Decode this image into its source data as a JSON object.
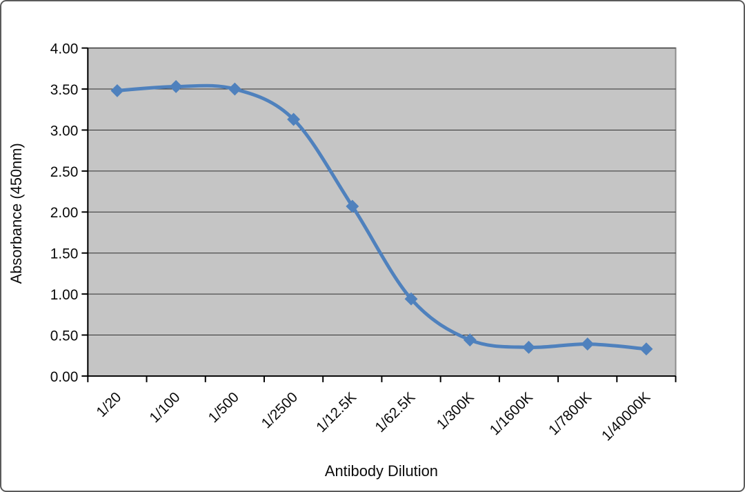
{
  "frame": {
    "background": "#ffffff",
    "border_color": "#5a5a5a"
  },
  "chart_data": {
    "type": "line",
    "title": "",
    "categories": [
      "1/20",
      "1/100",
      "1/500",
      "1/2500",
      "1/12.5K",
      "1/62.5K",
      "1/300K",
      "1/1600K",
      "1/7800K",
      "1/40000K"
    ],
    "series": [
      {
        "values": [
          3.48,
          3.53,
          3.5,
          3.13,
          2.07,
          0.94,
          0.44,
          0.35,
          0.39,
          0.33
        ],
        "marker": "diamond",
        "smoothed": true
      }
    ],
    "xlabel": "Antibody Dilution",
    "ylabel": "Absorbance (450nm)",
    "ylim": [
      0,
      4
    ],
    "ytick_step": 0.5,
    "ytick_labels": [
      "0.00",
      "0.50",
      "1.00",
      "1.50",
      "2.00",
      "2.50",
      "3.00",
      "3.50",
      "4.00"
    ],
    "grid": "horizontal",
    "legend": "none",
    "x_label_rotation_deg": -45,
    "colors": {
      "line": "#4f81bd",
      "plot_bg": "#c5c5c5",
      "gridline": "#2f2f2f",
      "axis": "#000000",
      "plot_border": "#8c8c8c",
      "text": "#0a0a0a"
    }
  }
}
